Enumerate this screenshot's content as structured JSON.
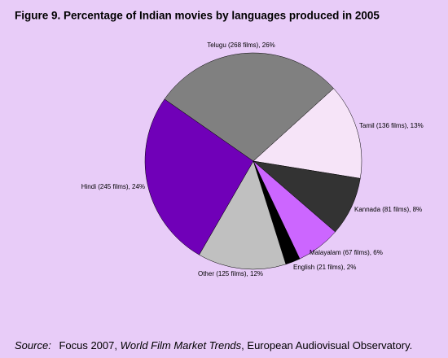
{
  "chart_data": {
    "type": "pie",
    "title": "Figure 9.  Percentage of Indian movies by languages produced in 2005",
    "values": [
      13,
      8,
      6,
      2,
      12,
      24,
      26
    ],
    "value_labels": [
      "Tamil (136 films), 13%",
      "Kannada (81 films), 8%",
      "Malayalam (67 films), 6%",
      "English (21 films), 2%",
      "Other (125 films), 12%",
      "Hindi (245 films), 24%",
      "Telugu (268 films), 26%"
    ],
    "colors": [
      "#f6e4f8",
      "#333333",
      "#cc66ff",
      "#000000",
      "#c0c0c0",
      "#7000b8",
      "#808080"
    ],
    "source": [
      "Source:",
      "Focus 2007,",
      "World Film Market Trends",
      ", European Audiovisual Observatory."
    ]
  }
}
